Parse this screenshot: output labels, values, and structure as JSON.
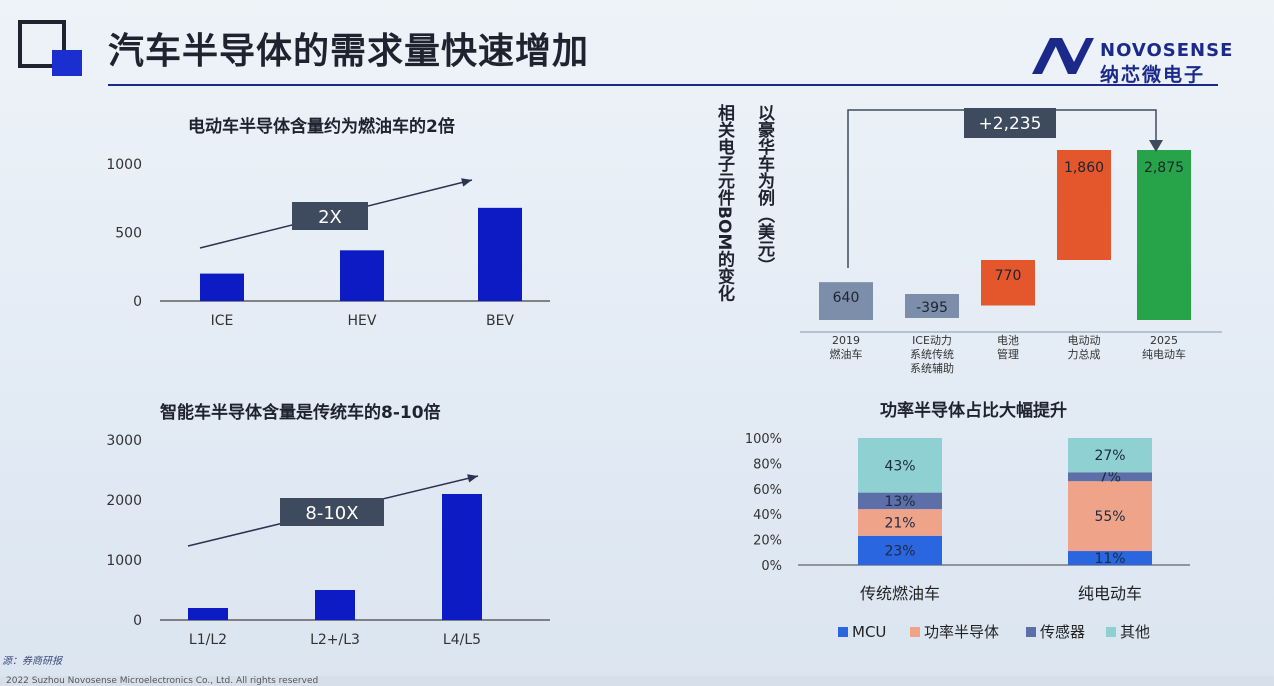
{
  "title": "汽车半导体的需求量快速增加",
  "brand": {
    "en": "NOVOSENSE",
    "cn": "纳芯微电子",
    "color": "#1b2a8a"
  },
  "source": "源：券商研报",
  "footer": "2022 Suzhou Novosense Microelectronics Co., Ltd. All rights reserved",
  "annotations": {
    "bev_label": "2X",
    "adas_label": "8-10X",
    "waterfall_delta": "+2,235",
    "waterfall_vertical_left": "相关电子元件BOM的变化",
    "waterfall_vertical_right": "以豪华车为例（美元）"
  },
  "colors": {
    "bar_blue": "#0c1bc4",
    "waterfall_gray": "#7c8eaa",
    "waterfall_orange": "#e4562b",
    "waterfall_green": "#27a44a",
    "mcu": "#2a66e0",
    "power": "#efa48a",
    "sensor": "#5c6fa8",
    "other": "#8fd0d3"
  },
  "chart_data": [
    {
      "type": "bar",
      "title": "电动车半导体含量约为燃油车的2倍",
      "categories": [
        "ICE",
        "HEV",
        "BEV"
      ],
      "values": [
        200,
        370,
        680
      ],
      "yticks": [
        "0",
        "500",
        "1000"
      ],
      "ylim": [
        0,
        1000
      ],
      "xlabel": "",
      "ylabel": "",
      "grid": false
    },
    {
      "type": "bar",
      "title": "智能车半导体含量是传统车的8-10倍",
      "categories": [
        "L1/L2",
        "L2+/L3",
        "L4/L5"
      ],
      "values": [
        200,
        500,
        2100
      ],
      "yticks": [
        "0",
        "1000",
        "2000",
        "3000"
      ],
      "ylim": [
        0,
        3000
      ],
      "xlabel": "",
      "ylabel": "",
      "grid": false
    },
    {
      "type": "bar",
      "title": "",
      "subtype": "waterfall",
      "categories": [
        "2019 燃油车",
        "ICE动力 系统传统 系统辅助",
        "电池 管理",
        "电动动 力总成",
        "2025 纯电动车"
      ],
      "category_lines": [
        [
          "2019",
          "燃油车"
        ],
        [
          "ICE动力",
          "系统传统",
          "系统辅助"
        ],
        [
          "电池",
          "管理"
        ],
        [
          "电动动",
          "力总成"
        ],
        [
          "2025",
          "纯电动车"
        ]
      ],
      "values": [
        640,
        -395,
        770,
        1860,
        2875
      ],
      "value_labels": [
        "640",
        "-395",
        "770",
        "1,860",
        "2,875"
      ],
      "kinds": [
        "total",
        "delta",
        "delta",
        "delta",
        "total"
      ]
    },
    {
      "type": "bar",
      "subtype": "stacked-100",
      "title": "功率半导体占比大幅提升",
      "categories": [
        "传统燃油车",
        "纯电动车"
      ],
      "series": [
        {
          "name": "MCU",
          "values": [
            23,
            11
          ]
        },
        {
          "name": "功率半导体",
          "values": [
            21,
            55
          ]
        },
        {
          "name": "传感器",
          "values": [
            13,
            7
          ]
        },
        {
          "name": "其他",
          "values": [
            43,
            27
          ]
        }
      ],
      "yticks": [
        "0%",
        "20%",
        "40%",
        "60%",
        "80%",
        "100%"
      ],
      "ylim": [
        0,
        100
      ],
      "legend": "bottom"
    }
  ]
}
